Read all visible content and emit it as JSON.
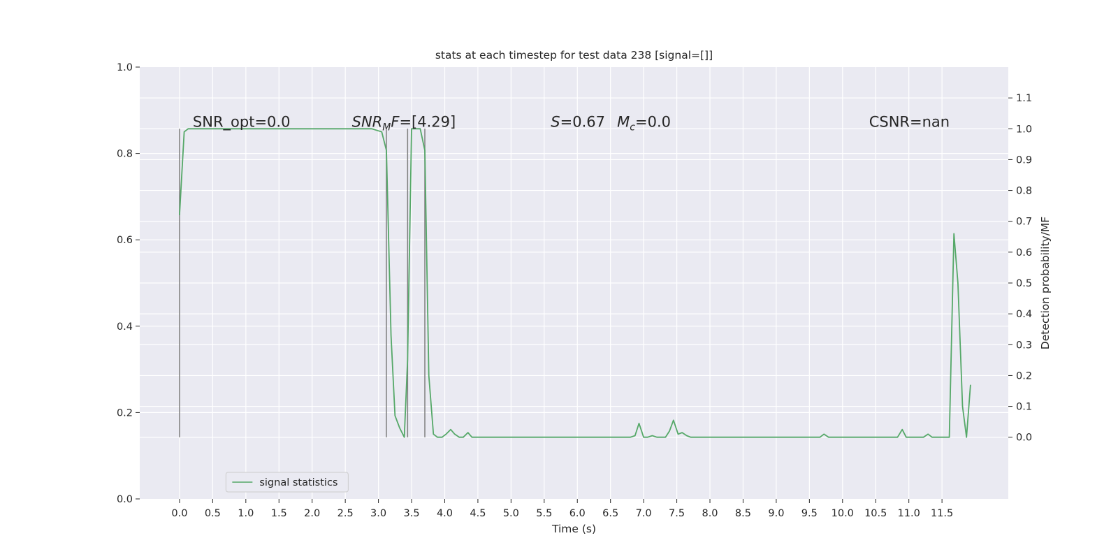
{
  "chart_data": {
    "type": "line",
    "title": "stats at each timestep for test data 238 [signal=[]]",
    "xlabel": "Time (s)",
    "ylabel_left": "",
    "ylabel_right": "Detection probability/MF",
    "xlim": [
      -0.6,
      12.5
    ],
    "ylim_left": [
      0.0,
      1.0
    ],
    "ylim_right": [
      -0.2,
      1.2
    ],
    "x_ticks": [
      "0.0",
      "0.5",
      "1.0",
      "1.5",
      "2.0",
      "2.5",
      "3.0",
      "3.5",
      "4.0",
      "4.5",
      "5.0",
      "5.5",
      "6.0",
      "6.5",
      "7.0",
      "7.5",
      "8.0",
      "8.5",
      "9.0",
      "9.5",
      "10.0",
      "10.5",
      "11.0",
      "11.5"
    ],
    "y_left_ticks": [
      "0.0",
      "0.2",
      "0.4",
      "0.6",
      "0.8",
      "1.0"
    ],
    "y_right_ticks": [
      "0.0",
      "0.1",
      "0.2",
      "0.3",
      "0.4",
      "0.5",
      "0.6",
      "0.7",
      "0.8",
      "0.9",
      "1.0",
      "1.1"
    ],
    "grid": true,
    "legend_position": "lower-left",
    "annotations": {
      "snr_opt": "SNR_opt=0.0",
      "snr_mf_symbol": "SNR",
      "snr_mf_sub": "M",
      "snr_mf_rest": "F",
      "snr_mf_value": "=[4.29]",
      "s_symbol": "S",
      "s_value": "=0.67",
      "mc_symbol": "M",
      "mc_sub": "c",
      "mc_value": "=0.0",
      "csnr": "CSNR=nan"
    },
    "vlines": [
      {
        "x": 0.0,
        "y_range": [
          0.0,
          1.0
        ]
      },
      {
        "x": 3.12,
        "y_range": [
          0.0,
          1.0
        ]
      },
      {
        "x": 3.44,
        "y_range": [
          0.0,
          1.0
        ]
      },
      {
        "x": 3.7,
        "y_range": [
          0.0,
          1.0
        ]
      }
    ],
    "series": [
      {
        "name": "signal statistics",
        "color": "#55a868",
        "axis": "right",
        "x": [
          0.0,
          0.07,
          0.13,
          0.2,
          0.3,
          0.5,
          1.0,
          1.5,
          2.0,
          2.5,
          2.9,
          3.05,
          3.12,
          3.19,
          3.25,
          3.32,
          3.39,
          3.44,
          3.5,
          3.56,
          3.63,
          3.7,
          3.76,
          3.83,
          3.89,
          3.96,
          4.02,
          4.09,
          4.15,
          4.22,
          4.28,
          4.35,
          4.41,
          4.5,
          5.0,
          5.5,
          6.0,
          6.5,
          6.8,
          6.87,
          6.93,
          7.0,
          7.06,
          7.13,
          7.2,
          7.26,
          7.33,
          7.39,
          7.45,
          7.52,
          7.58,
          7.65,
          7.71,
          7.8,
          8.5,
          9.0,
          9.6,
          9.66,
          9.72,
          9.79,
          9.85,
          10.0,
          10.5,
          10.7,
          10.77,
          10.83,
          10.9,
          10.96,
          11.03,
          11.09,
          11.16,
          11.22,
          11.29,
          11.35,
          11.42,
          11.48,
          11.55,
          11.61,
          11.68,
          11.74,
          11.81,
          11.87,
          11.93
        ],
        "values": [
          0.72,
          0.99,
          1.0,
          1.0,
          1.0,
          1.0,
          1.0,
          1.0,
          1.0,
          1.0,
          1.0,
          0.99,
          0.93,
          0.33,
          0.07,
          0.03,
          0.0,
          0.25,
          1.0,
          1.0,
          1.0,
          0.93,
          0.2,
          0.01,
          0.0,
          0.0,
          0.01,
          0.025,
          0.01,
          0.0,
          0.0,
          0.015,
          0.0,
          0.0,
          0.0,
          0.0,
          0.0,
          0.0,
          0.0,
          0.005,
          0.045,
          0.0,
          0.0,
          0.005,
          0.0,
          0.0,
          0.0,
          0.02,
          0.055,
          0.01,
          0.015,
          0.005,
          0.0,
          0.0,
          0.0,
          0.0,
          0.0,
          0.0,
          0.01,
          0.0,
          0.0,
          0.0,
          0.0,
          0.0,
          0.0,
          0.0,
          0.025,
          0.0,
          0.0,
          0.0,
          0.0,
          0.0,
          0.01,
          0.0,
          0.0,
          0.0,
          0.0,
          0.0,
          0.66,
          0.5,
          0.1,
          0.0,
          0.17
        ]
      }
    ]
  }
}
